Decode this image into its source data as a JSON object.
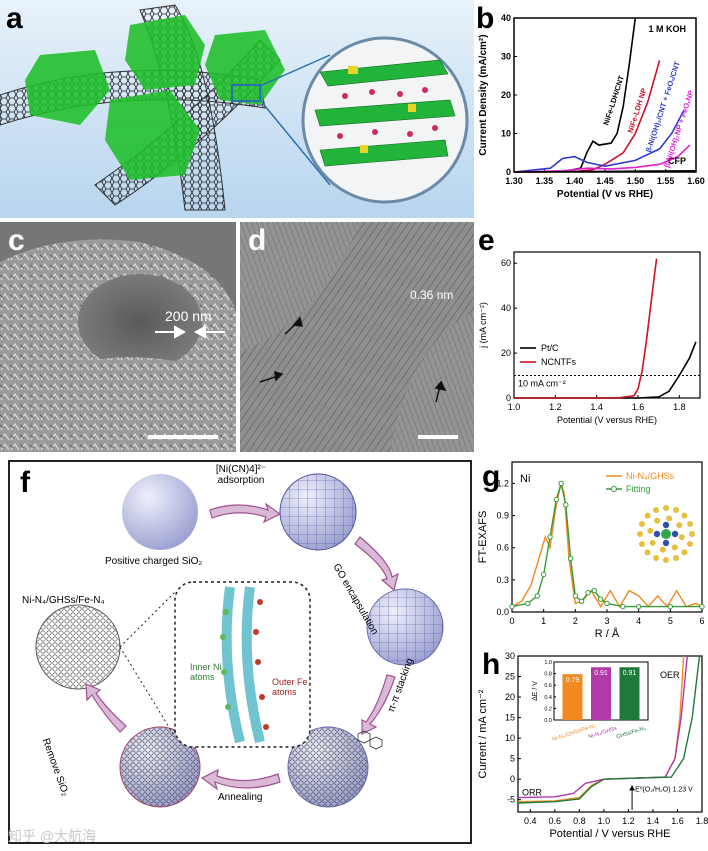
{
  "figure": {
    "watermark": "知乎 @大航海"
  },
  "panel_a": {
    "label": "a"
  },
  "panel_b": {
    "label": "b",
    "electrolyte": "1 M KOH",
    "substrate_label": "CFP",
    "colors": {
      "nife_ldh_cnt": "#000000",
      "nife_ldh_np": "#d0102f",
      "ni_fe_cnt": "#2d3bd1",
      "ni_fe_np": "#e020d0",
      "cfp": "#000000"
    },
    "chart_data": {
      "type": "line",
      "xlabel": "Potential (V vs RHE)",
      "ylabel": "Current Density (mA/cm²)",
      "xlim": [
        1.3,
        1.6
      ],
      "ylim": [
        0,
        40
      ],
      "xticks": [
        "1.30",
        "1.35",
        "1.40",
        "1.45",
        "1.50",
        "1.55",
        "1.60"
      ],
      "yticks": [
        "0",
        "10",
        "20",
        "30",
        "40"
      ],
      "series": [
        {
          "name": "NiFe-LDH/CNT",
          "x": [
            1.3,
            1.38,
            1.41,
            1.42,
            1.43,
            1.44,
            1.46,
            1.47,
            1.48,
            1.49,
            1.5
          ],
          "y": [
            0,
            0.1,
            1,
            5,
            8,
            7,
            7.5,
            10,
            17,
            28,
            40
          ]
        },
        {
          "name": "NiFe-LDH NP",
          "x": [
            1.3,
            1.4,
            1.43,
            1.45,
            1.48,
            1.5,
            1.52,
            1.54
          ],
          "y": [
            0,
            0.1,
            0.6,
            2,
            5,
            10,
            18,
            29
          ]
        },
        {
          "name": "β-Ni(OH)₂/CNT + FeOₓ/CNT",
          "x": [
            1.3,
            1.36,
            1.38,
            1.4,
            1.42,
            1.45,
            1.5,
            1.54,
            1.56,
            1.58
          ],
          "y": [
            0,
            1,
            3.5,
            4,
            2.5,
            1.5,
            3,
            6,
            10,
            16
          ]
        },
        {
          "name": "β-Ni(OH)₂NP + FeOₓNP",
          "x": [
            1.3,
            1.38,
            1.42,
            1.46,
            1.5,
            1.54,
            1.57,
            1.59
          ],
          "y": [
            0,
            0.3,
            1,
            0.8,
            1.2,
            2,
            4,
            7
          ]
        },
        {
          "name": "CFP",
          "x": [
            1.3,
            1.6
          ],
          "y": [
            0,
            0.3
          ]
        }
      ]
    }
  },
  "panel_c": {
    "label": "c",
    "scale": "200 nm"
  },
  "panel_d": {
    "label": "d",
    "spacing": "0.36 nm"
  },
  "panel_e": {
    "label": "e",
    "ref_label": "10 mA cm⁻²",
    "colors": {
      "ptc": "#000000",
      "ncntfs": "#d0101a"
    },
    "chart_data": {
      "type": "line",
      "xlabel": "Potential (V versus RHE)",
      "ylabel": "j (mA cm⁻²)",
      "xlim": [
        1.0,
        1.9
      ],
      "ylim": [
        0,
        65
      ],
      "xticks": [
        "1.0",
        "1.2",
        "1.4",
        "1.6",
        "1.8"
      ],
      "yticks": [
        "0",
        "20",
        "40",
        "60"
      ],
      "series": [
        {
          "name": "Pt/C",
          "x": [
            1.0,
            1.6,
            1.7,
            1.75,
            1.8,
            1.85,
            1.88
          ],
          "y": [
            0,
            0,
            0.5,
            3,
            10,
            18,
            25
          ]
        },
        {
          "name": "NCNTFs",
          "x": [
            1.0,
            1.5,
            1.58,
            1.6,
            1.62,
            1.64,
            1.66,
            1.68,
            1.69
          ],
          "y": [
            0,
            0,
            1,
            4,
            12,
            25,
            40,
            55,
            62
          ]
        }
      ]
    }
  },
  "panel_f": {
    "label": "f",
    "steps": {
      "adsorption": "[Ni(CN)4]²⁻ adsorption",
      "go": "GO encapsulation",
      "stacking": "π-π stacking",
      "annealing": "Annealing",
      "remove": "Remove SiO₂"
    },
    "sio2": "Positive charged SiO₂",
    "product": "Ni-N₄/GHSs/Fe-N₄",
    "inner": "Inner Ni atoms",
    "outer": "Outer Fe atoms"
  },
  "panel_g": {
    "label": "g",
    "element": "Ni",
    "colors": {
      "exp": "#f08a1e",
      "fit": "#3a9a3a"
    },
    "chart_data": {
      "type": "line",
      "xlabel": "R / Å",
      "ylabel": "FT-EXAFS",
      "xlim": [
        0,
        6
      ],
      "ylim": [
        0,
        1.4
      ],
      "xticks": [
        "0",
        "1",
        "2",
        "3",
        "4",
        "5",
        "6"
      ],
      "yticks": [
        "0.0",
        "0.3",
        "0.6",
        "0.9",
        "1.2"
      ],
      "series": [
        {
          "name": "Ni-N₄/GHSs",
          "x": [
            0,
            0.3,
            0.6,
            0.9,
            1.05,
            1.2,
            1.4,
            1.55,
            1.65,
            1.8,
            2.0,
            2.2,
            2.5,
            2.8,
            3.1,
            3.4,
            3.7,
            4.0,
            4.3,
            4.6,
            4.9,
            5.2,
            5.5,
            5.8,
            6.0
          ],
          "y": [
            0.05,
            0.1,
            0.25,
            0.55,
            0.7,
            0.6,
            1.0,
            1.2,
            1.1,
            0.5,
            0.08,
            0.1,
            0.2,
            0.05,
            0.2,
            0.05,
            0.2,
            0.15,
            0.05,
            0.15,
            0.05,
            0.2,
            0.05,
            0.08,
            0.05
          ]
        },
        {
          "name": "Fitting",
          "x": [
            0,
            0.5,
            0.8,
            1.0,
            1.2,
            1.4,
            1.55,
            1.7,
            1.85,
            2.0,
            2.2,
            2.4,
            2.6,
            2.8,
            3.0,
            3.5,
            4.0,
            5.0,
            6.0
          ],
          "y": [
            0.05,
            0.08,
            0.15,
            0.35,
            0.7,
            1.05,
            1.2,
            1.0,
            0.5,
            0.15,
            0.1,
            0.18,
            0.2,
            0.12,
            0.08,
            0.05,
            0.05,
            0.05,
            0.05
          ]
        }
      ]
    }
  },
  "panel_h": {
    "label": "h",
    "oer": "OER",
    "orr": "ORR",
    "e0_label": "E⁰(O₂/H₂O) 1.23 V",
    "colors": {
      "ni_fe": "#f08a1e",
      "ni": "#b03aa8",
      "fe": "#1e7a3a"
    },
    "chart_data": {
      "type": "line",
      "xlabel": "Potential / V versus RHE",
      "ylabel": "Current / mA cm⁻²",
      "xlim": [
        0.3,
        1.8
      ],
      "ylim": [
        -8,
        30
      ],
      "xticks": [
        "0.4",
        "0.6",
        "0.8",
        "1.0",
        "1.2",
        "1.4",
        "1.6",
        "1.8"
      ],
      "yticks": [
        "-5",
        "0",
        "5",
        "10",
        "15",
        "20",
        "25",
        "30"
      ],
      "series": [
        {
          "name": "Ni-N₄/GHSs/Fe-N₄",
          "x": [
            0.3,
            0.6,
            0.8,
            0.9,
            1.0,
            1.5,
            1.58,
            1.62,
            1.65
          ],
          "y": [
            -5.5,
            -5.3,
            -4.5,
            -1.5,
            0,
            0.5,
            5,
            15,
            30
          ]
        },
        {
          "name": "Ni-N₄/GHSs",
          "x": [
            0.3,
            0.6,
            0.75,
            0.85,
            1.0,
            1.5,
            1.58,
            1.63,
            1.68
          ],
          "y": [
            -4.5,
            -4.3,
            -3.5,
            -1,
            0,
            0.5,
            5,
            15,
            30
          ]
        },
        {
          "name": "GHSs/Fe-N₄",
          "x": [
            0.3,
            0.6,
            0.8,
            0.9,
            1.0,
            1.55,
            1.65,
            1.72,
            1.78
          ],
          "y": [
            -5.8,
            -5.5,
            -4.8,
            -1.8,
            0,
            0.5,
            5,
            15,
            30
          ]
        }
      ]
    },
    "inset_data": {
      "type": "bar",
      "ylabel": "ΔE / V",
      "ylim": [
        0,
        1.0
      ],
      "yticks": [
        "0.0",
        "0.2",
        "0.4",
        "0.6",
        "0.8",
        "1.0"
      ],
      "categories": [
        "Ni-N₄/GHSs/Fe-N₄",
        "Ni-N₄/GHSs",
        "GHSs/Fe-N₄"
      ],
      "values": [
        0.79,
        0.91,
        0.91
      ],
      "value_labels": [
        "0.79",
        "0.91",
        "0.91"
      ]
    }
  }
}
